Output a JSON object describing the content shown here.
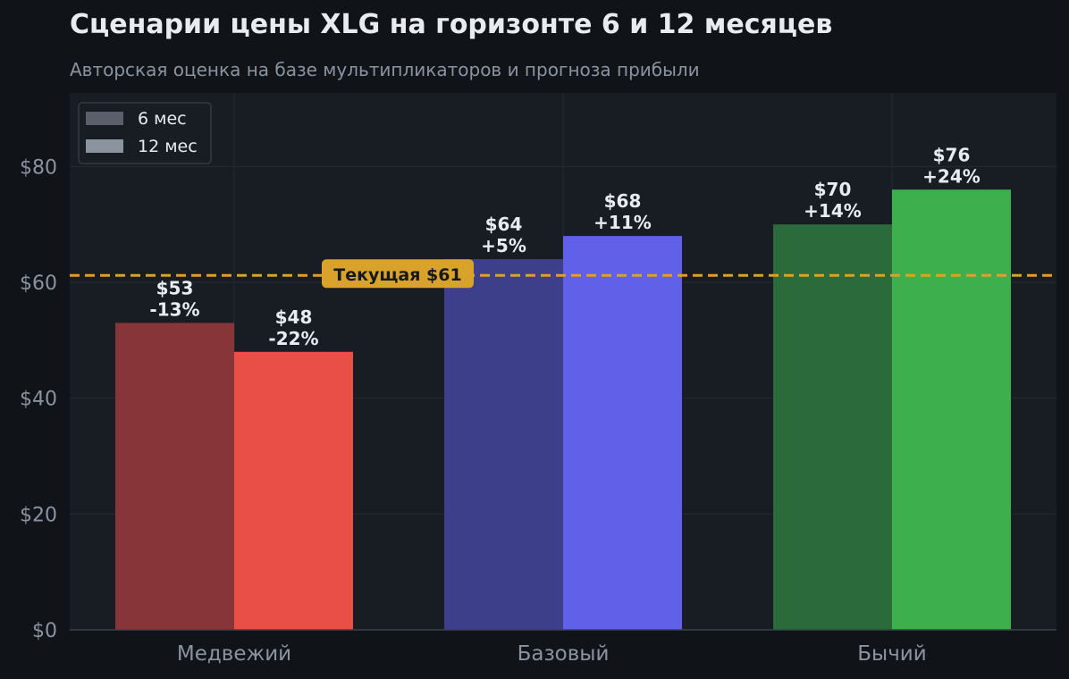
{
  "title": "Сценарии цены XLG на горизонте 6 и 12 месяцев",
  "subtitle": "Авторская оценка на базе мультипликаторов и прогноза прибыли",
  "chart_data": {
    "type": "bar",
    "categories": [
      "Медвежий",
      "Базовый",
      "Бычий"
    ],
    "series": [
      {
        "name": "6 мес",
        "values": [
          53,
          64,
          70
        ],
        "labels": [
          "$53",
          "$64",
          "$70"
        ],
        "changes": [
          "-13%",
          "+5%",
          "+14%"
        ],
        "colors": [
          "#873538",
          "#3e3f8a",
          "#2b6a3a"
        ]
      },
      {
        "name": "12 мес",
        "values": [
          48,
          68,
          76
        ],
        "labels": [
          "$48",
          "$68",
          "$76"
        ],
        "changes": [
          "-22%",
          "+11%",
          "+24%"
        ],
        "colors": [
          "#ea4f47",
          "#6060e8",
          "#3db04d"
        ]
      }
    ],
    "legend_colors": [
      "#5a5f6b",
      "#8a939e"
    ],
    "legend_position": "top-left",
    "reference_line": {
      "value": 61.2,
      "label": "Текущая $61",
      "color": "#d9a22a"
    },
    "yticks": [
      0,
      20,
      40,
      60,
      80
    ],
    "ytick_labels": [
      "$0",
      "$20",
      "$40",
      "$60",
      "$80"
    ],
    "ylim": [
      0,
      92.7
    ],
    "grid": true
  }
}
